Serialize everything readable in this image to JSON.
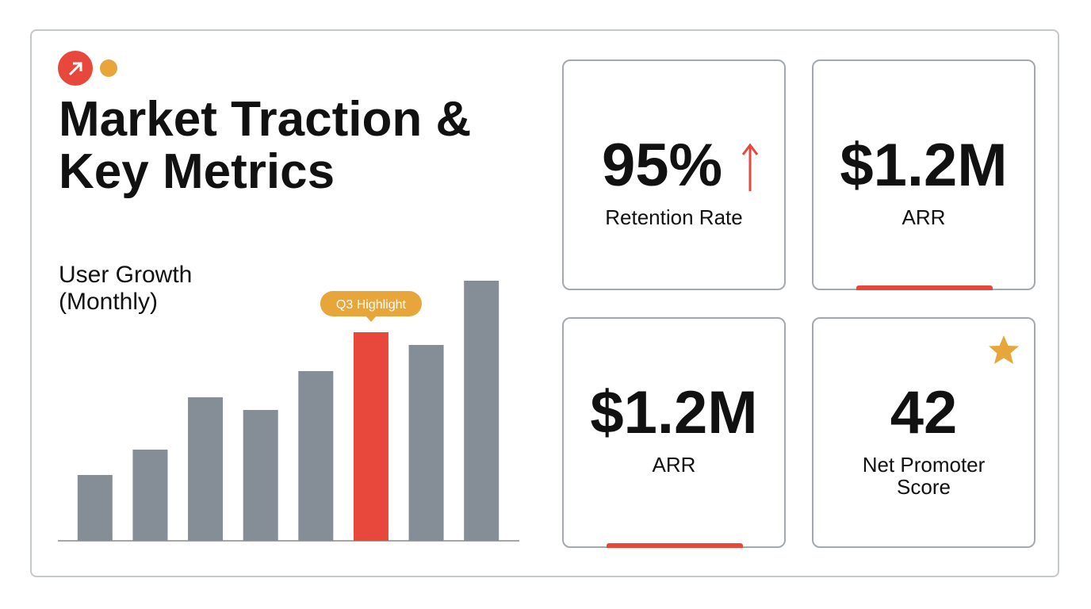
{
  "header": {
    "title": "Market Traction & Key Metrics"
  },
  "chart_data": {
    "type": "bar",
    "title": "User Growth (Monthly)",
    "categories": [
      null,
      null,
      null,
      null,
      null,
      null,
      null,
      null
    ],
    "values": [
      83,
      115,
      181,
      165,
      214,
      263,
      247,
      328
    ],
    "color": "#858d96",
    "highlight_color": "#e8473c",
    "highlight_index": 5,
    "annotation": "Q3 Highlight",
    "annotation_color": "#e8a53a",
    "ylim": [
      0,
      340
    ]
  },
  "metrics": [
    {
      "value": "95%",
      "label": "Retention Rate"
    },
    {
      "value": "$1.2M",
      "label": "ARR"
    },
    {
      "value": "$1.2M",
      "label": "ARR"
    },
    {
      "value": "42",
      "label": "Net Promoter Score"
    }
  ]
}
